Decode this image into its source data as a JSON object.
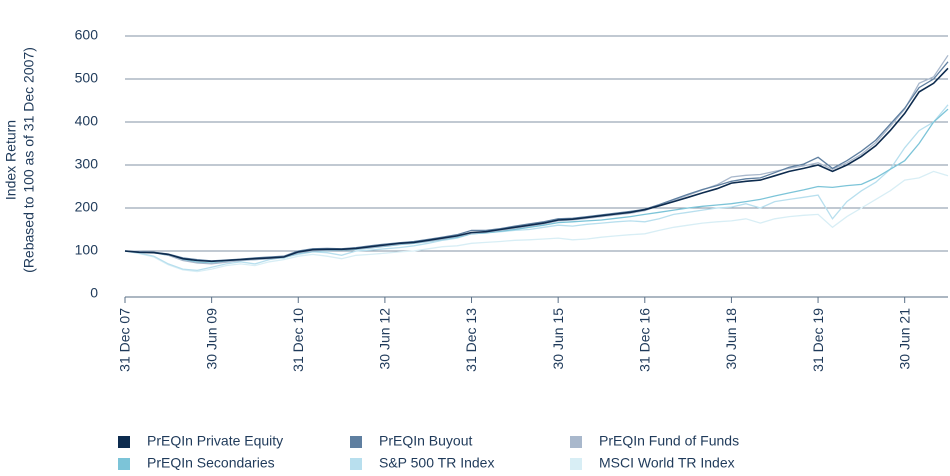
{
  "chart_data": {
    "type": "line",
    "ylabel": "Index Return",
    "ylabel_note": "(Rebased to 100 as of 31 Dec 2007)",
    "categories": [
      "31 Dec 07",
      null,
      null,
      null,
      null,
      null,
      "30 Jun 09",
      null,
      null,
      null,
      null,
      null,
      "31 Dec 10",
      null,
      null,
      null,
      null,
      null,
      "30 Jun 12",
      null,
      null,
      null,
      null,
      null,
      "31 Dec 13",
      null,
      null,
      null,
      null,
      null,
      "30 Jun 15",
      null,
      null,
      null,
      null,
      null,
      "31 Dec 16",
      null,
      null,
      null,
      null,
      null,
      "30 Jun 18",
      null,
      null,
      null,
      null,
      null,
      "31 Dec 19",
      null,
      null,
      null,
      null,
      null,
      "30 Jun 21",
      null,
      null,
      null
    ],
    "ylim": [
      0,
      600
    ],
    "yticks": [
      0,
      100,
      200,
      300,
      400,
      500,
      600
    ],
    "grid": true,
    "legend": "bottom",
    "series": [
      {
        "name": "PrEQIn Private Equity",
        "color": "#0d2b4e",
        "values": [
          100,
          97,
          96,
          92,
          82,
          78,
          76,
          78,
          80,
          82,
          84,
          86,
          98,
          103,
          104,
          104,
          106,
          110,
          114,
          118,
          120,
          125,
          130,
          135,
          143,
          145,
          150,
          155,
          160,
          165,
          172,
          174,
          178,
          182,
          186,
          190,
          196,
          205,
          215,
          225,
          235,
          245,
          258,
          262,
          265,
          275,
          285,
          292,
          300,
          285,
          300,
          320,
          345,
          380,
          420,
          470,
          490,
          525
        ]
      },
      {
        "name": "PrEQIn Buyout",
        "color": "#5f7fa0",
        "values": [
          100,
          98,
          97,
          93,
          84,
          80,
          77,
          79,
          81,
          84,
          86,
          88,
          100,
          105,
          106,
          105,
          108,
          112,
          116,
          119,
          122,
          127,
          132,
          138,
          148,
          148,
          152,
          158,
          163,
          168,
          175,
          176,
          180,
          184,
          188,
          192,
          197,
          208,
          220,
          232,
          243,
          252,
          262,
          268,
          270,
          282,
          295,
          302,
          318,
          292,
          310,
          332,
          358,
          395,
          432,
          480,
          500,
          540
        ]
      },
      {
        "name": "PrEQIn Fund of Funds",
        "color": "#a9b8cc",
        "values": [
          100,
          99,
          97,
          90,
          78,
          72,
          70,
          74,
          78,
          80,
          82,
          85,
          96,
          100,
          102,
          103,
          105,
          108,
          112,
          116,
          119,
          123,
          128,
          134,
          141,
          144,
          148,
          153,
          158,
          163,
          170,
          172,
          176,
          180,
          184,
          188,
          194,
          206,
          218,
          230,
          242,
          254,
          272,
          276,
          278,
          285,
          292,
          298,
          305,
          290,
          305,
          325,
          352,
          390,
          430,
          490,
          505,
          555
        ]
      },
      {
        "name": "PrEQIn Secondaries",
        "color": "#7cc4d8",
        "values": [
          100,
          98,
          96,
          90,
          80,
          74,
          72,
          75,
          78,
          80,
          82,
          84,
          95,
          99,
          101,
          102,
          104,
          107,
          111,
          115,
          118,
          122,
          127,
          132,
          140,
          142,
          146,
          150,
          155,
          160,
          166,
          168,
          170,
          172,
          176,
          180,
          185,
          190,
          195,
          200,
          204,
          207,
          210,
          215,
          220,
          228,
          235,
          242,
          250,
          248,
          252,
          255,
          270,
          290,
          310,
          350,
          400,
          430
        ]
      },
      {
        "name": "S&P 500 TR Index",
        "color": "#b8dfee",
        "values": [
          100,
          95,
          88,
          70,
          58,
          55,
          62,
          70,
          75,
          70,
          80,
          85,
          92,
          98,
          96,
          90,
          100,
          102,
          105,
          108,
          112,
          118,
          125,
          130,
          140,
          142,
          145,
          148,
          150,
          155,
          160,
          158,
          162,
          165,
          168,
          170,
          168,
          175,
          185,
          190,
          195,
          200,
          202,
          210,
          200,
          215,
          220,
          225,
          230,
          175,
          215,
          240,
          260,
          290,
          340,
          380,
          400,
          440
        ]
      },
      {
        "name": "MSCI World TR Index",
        "color": "#d8eef5",
        "values": [
          100,
          94,
          86,
          68,
          56,
          52,
          58,
          66,
          70,
          66,
          75,
          80,
          88,
          92,
          88,
          82,
          90,
          92,
          95,
          98,
          100,
          105,
          110,
          112,
          118,
          120,
          122,
          125,
          126,
          128,
          130,
          126,
          128,
          132,
          135,
          138,
          140,
          148,
          155,
          160,
          165,
          168,
          170,
          175,
          165,
          175,
          180,
          183,
          185,
          155,
          180,
          200,
          220,
          240,
          265,
          270,
          285,
          275
        ]
      }
    ]
  }
}
